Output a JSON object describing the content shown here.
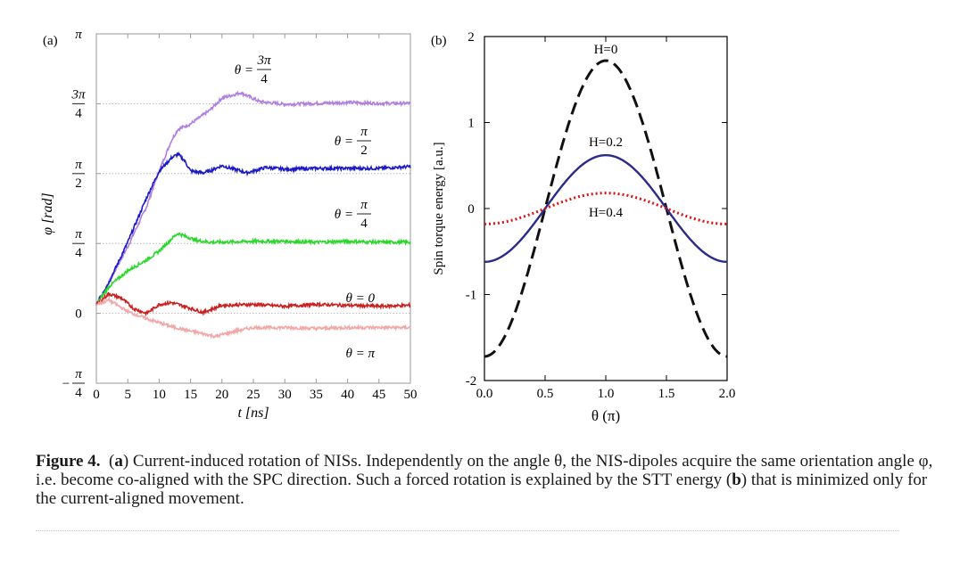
{
  "figure": {
    "panel_a": {
      "label": "(a)",
      "ylabel": "φ [rad]",
      "xlabel": "t [ns]",
      "y_ticks": [
        {
          "value": 3.1416,
          "num": "π",
          "den": ""
        },
        {
          "value": 2.3562,
          "num": "3π",
          "den": "4"
        },
        {
          "value": 1.5708,
          "num": "π",
          "den": "2"
        },
        {
          "value": 0.7854,
          "num": "π",
          "den": "4"
        },
        {
          "value": 0,
          "num": "0",
          "den": ""
        },
        {
          "value": -0.7854,
          "num": "π",
          "den": "4",
          "sign": "−"
        }
      ],
      "x_ticks": [
        "0",
        "5",
        "10",
        "15",
        "20",
        "25",
        "30",
        "35",
        "40",
        "45",
        "50"
      ],
      "annotations": [
        {
          "prefix": "θ =",
          "num": "3π",
          "den": "4"
        },
        {
          "prefix": "θ =",
          "num": "π",
          "den": "2"
        },
        {
          "prefix": "θ =",
          "num": "π",
          "den": "4"
        },
        {
          "prefix": "θ = 0",
          "num": "",
          "den": ""
        },
        {
          "prefix": "θ = π",
          "num": "",
          "den": ""
        }
      ]
    },
    "panel_b": {
      "label": "(b)",
      "ylabel": "Spin torque energy [a.u.]",
      "xlabel": "θ (π)",
      "x_ticks": [
        "0.0",
        "0.5",
        "1.0",
        "1.5",
        "2.0"
      ],
      "y_ticks": [
        "2",
        "1",
        "0",
        "-1",
        "-2"
      ],
      "curve_labels": [
        "H=0",
        "H=0.2",
        "H=0.4"
      ]
    }
  },
  "chart_data": [
    {
      "type": "line",
      "xlabel": "t [ns]",
      "ylabel": "φ [rad]",
      "xlim": [
        0,
        50
      ],
      "ylim": [
        -0.7854,
        3.1416
      ],
      "grid": "dotted reference lines at 0, π/4, π/2, 3π/4",
      "series": [
        {
          "name": "θ = 3π/4",
          "color": "#b07fe0",
          "x": [
            0,
            2,
            5,
            8,
            10,
            12,
            13,
            15,
            18,
            20,
            23,
            26,
            30,
            35,
            40,
            45,
            50
          ],
          "y": [
            0.1,
            0.35,
            0.75,
            1.2,
            1.6,
            1.95,
            2.07,
            2.13,
            2.28,
            2.42,
            2.48,
            2.38,
            2.35,
            2.36,
            2.37,
            2.36,
            2.36
          ]
        },
        {
          "name": "θ = π/2",
          "color": "#1a1ac8",
          "x": [
            0,
            2,
            5,
            8,
            10,
            12,
            13,
            14,
            15,
            17,
            18,
            20,
            22,
            24,
            27,
            30,
            35,
            40,
            45,
            50
          ],
          "y": [
            0.1,
            0.35,
            0.8,
            1.3,
            1.6,
            1.75,
            1.79,
            1.72,
            1.6,
            1.58,
            1.6,
            1.66,
            1.62,
            1.58,
            1.64,
            1.62,
            1.63,
            1.63,
            1.63,
            1.65
          ]
        },
        {
          "name": "θ = π/4",
          "color": "#2ad82a",
          "x": [
            0,
            2,
            5,
            8,
            10,
            12,
            13,
            14,
            16,
            18,
            20,
            25,
            30,
            35,
            40,
            45,
            50
          ],
          "y": [
            0.1,
            0.3,
            0.48,
            0.6,
            0.7,
            0.84,
            0.9,
            0.87,
            0.82,
            0.8,
            0.8,
            0.81,
            0.81,
            0.8,
            0.81,
            0.8,
            0.8
          ]
        },
        {
          "name": "θ = 0",
          "color": "#cc2020",
          "x": [
            0,
            2,
            4,
            6,
            8,
            10,
            12,
            14,
            17,
            20,
            25,
            30,
            35,
            40,
            45,
            50
          ],
          "y": [
            0.1,
            0.22,
            0.17,
            0.05,
            0.0,
            0.1,
            0.12,
            0.08,
            0.01,
            0.09,
            0.1,
            0.08,
            0.1,
            0.09,
            0.08,
            0.09
          ]
        },
        {
          "name": "θ = π",
          "color": "#f0a8a8",
          "x": [
            0,
            2,
            5,
            8,
            12,
            15,
            19,
            22,
            25,
            30,
            35,
            40,
            45,
            50
          ],
          "y": [
            0.1,
            0.15,
            0.02,
            -0.06,
            -0.15,
            -0.2,
            -0.26,
            -0.2,
            -0.16,
            -0.16,
            -0.17,
            -0.16,
            -0.16,
            -0.16
          ]
        }
      ]
    },
    {
      "type": "line",
      "xlabel": "θ (π)",
      "ylabel": "Spin torque energy [a.u.]",
      "xlim": [
        0,
        2
      ],
      "ylim": [
        -2,
        2
      ],
      "series": [
        {
          "name": "H=0",
          "color": "#111111",
          "style": "dashed",
          "amplitude": 1.72
        },
        {
          "name": "H=0.2",
          "color": "#2b2b88",
          "style": "solid",
          "amplitude": 0.62
        },
        {
          "name": "H=0.4",
          "color": "#dd1111",
          "style": "dotted",
          "amplitude": 0.18
        }
      ],
      "function": "E(θ) = -amplitude · cos(π·θ)"
    }
  ],
  "caption": {
    "label": "Figure 4.",
    "a": "a",
    "b": "b",
    "text1": " Current-induced rotation of NISs. Independently on the angle θ, the NIS-dipoles acquire the same orientation angle φ, i.e. become co-aligned with the SPC direction. Such a forced rotation is explained by the STT energy (",
    "text2": ") that is minimized only for the current-aligned movement."
  }
}
